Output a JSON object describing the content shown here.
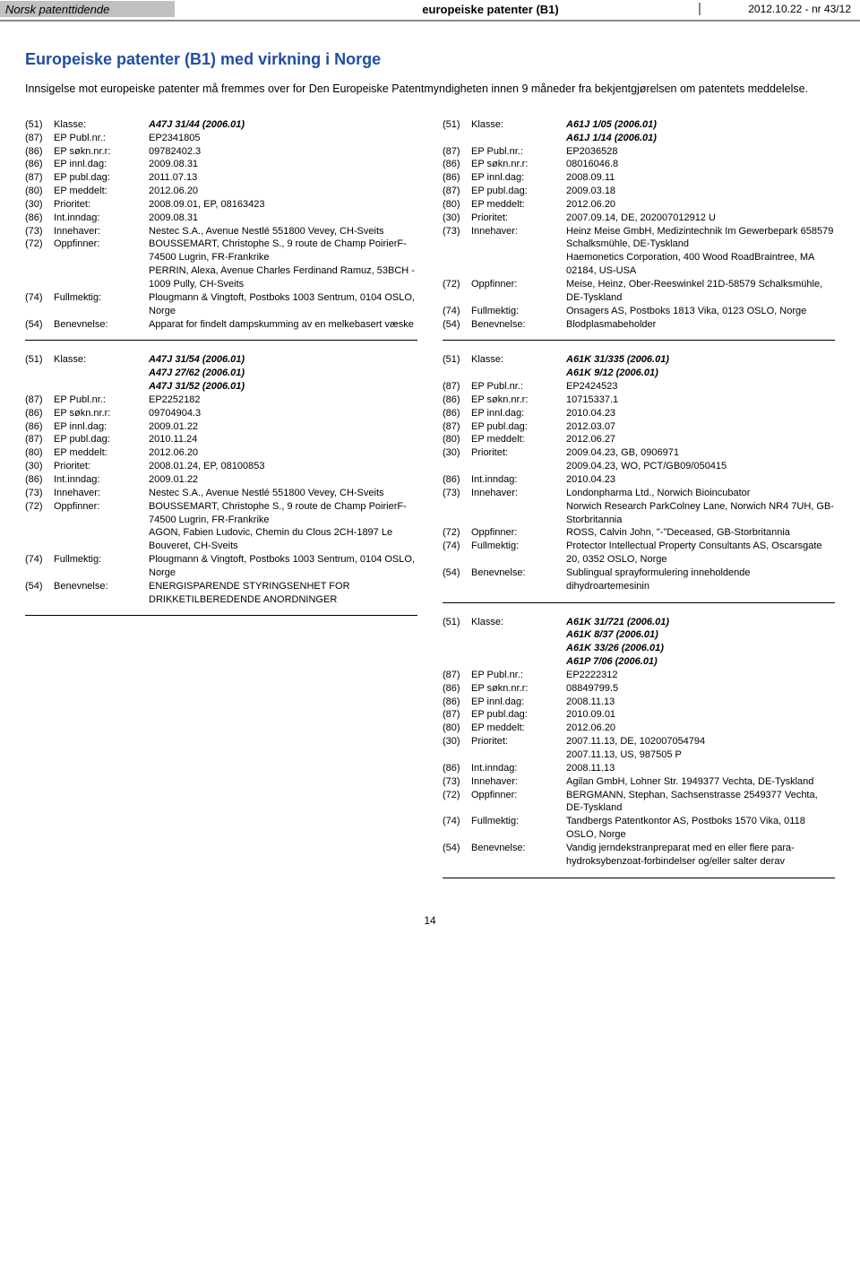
{
  "header": {
    "left": "Norsk patenttidende",
    "center": "europeiske patenter (B1)",
    "right": "2012.10.22 - nr 43/12"
  },
  "title": "Europeiske patenter (B1) med virkning i Norge",
  "intro": "Innsigelse mot europeiske patenter må fremmes over for Den Europeiske Patentmyndigheten innen 9 måneder fra bekjentgjørelsen om patentets meddelelse.",
  "pagenum": "14",
  "left_entries": [
    {
      "rows": [
        {
          "c": "(51)",
          "l": "Klasse:",
          "v": "A47J 31/44  (2006.01)",
          "b": true
        },
        {
          "c": "(87)",
          "l": "EP Publ.nr.:",
          "v": "EP2341805"
        },
        {
          "c": "(86)",
          "l": "EP søkn.nr.r:",
          "v": "09782402.3"
        },
        {
          "c": "(86)",
          "l": "EP innl.dag:",
          "v": "2009.08.31"
        },
        {
          "c": "(87)",
          "l": "EP publ.dag:",
          "v": "2011.07.13"
        },
        {
          "c": "(80)",
          "l": "EP meddelt:",
          "v": "2012.06.20"
        },
        {
          "c": "(30)",
          "l": "Prioritet:",
          "v": "2008.09.01, EP, 08163423"
        },
        {
          "c": "(86)",
          "l": "Int.inndag:",
          "v": "2009.08.31"
        },
        {
          "c": "(73)",
          "l": "Innehaver:",
          "v": "Nestec S.A., Avenue Nestlé 551800 Vevey, CH-Sveits"
        },
        {
          "c": "(72)",
          "l": "Oppfinner:",
          "v": "BOUSSEMART, Christophe S., 9 route de Champ PoirierF-74500 Lugrin, FR-Frankrike\nPERRIN, Alexa, Avenue Charles Ferdinand Ramuz, 53BCH - 1009 Pully, CH-Sveits"
        },
        {
          "c": "(74)",
          "l": "Fullmektig:",
          "v": "Plougmann & Vingtoft, Postboks 1003 Sentrum, 0104 OSLO, Norge"
        },
        {
          "c": "(54)",
          "l": "Benevnelse:",
          "v": "Apparat for findelt dampskumming av en melkebasert væske"
        }
      ]
    },
    {
      "rows": [
        {
          "c": "(51)",
          "l": "Klasse:",
          "v": "A47J 31/54  (2006.01)",
          "b": true
        },
        {
          "c": "",
          "l": "",
          "v": "A47J 27/62  (2006.01)",
          "b": true
        },
        {
          "c": "",
          "l": "",
          "v": "A47J 31/52  (2006.01)",
          "b": true
        },
        {
          "c": "(87)",
          "l": "EP Publ.nr.:",
          "v": "EP2252182"
        },
        {
          "c": "(86)",
          "l": "EP søkn.nr.r:",
          "v": "09704904.3"
        },
        {
          "c": "(86)",
          "l": "EP innl.dag:",
          "v": "2009.01.22"
        },
        {
          "c": "(87)",
          "l": "EP publ.dag:",
          "v": "2010.11.24"
        },
        {
          "c": "(80)",
          "l": "EP meddelt:",
          "v": "2012.06.20"
        },
        {
          "c": "(30)",
          "l": "Prioritet:",
          "v": "2008.01.24, EP, 08100853"
        },
        {
          "c": "(86)",
          "l": "Int.inndag:",
          "v": "2009.01.22"
        },
        {
          "c": "(73)",
          "l": "Innehaver:",
          "v": "Nestec S.A., Avenue Nestlé 551800 Vevey, CH-Sveits"
        },
        {
          "c": "(72)",
          "l": "Oppfinner:",
          "v": "BOUSSEMART, Christophe S., 9 route de Champ PoirierF-74500 Lugrin, FR-Frankrike\nAGON, Fabien Ludovic, Chemin du Clous 2CH-1897 Le Bouveret, CH-Sveits"
        },
        {
          "c": "(74)",
          "l": "Fullmektig:",
          "v": "Plougmann & Vingtoft, Postboks 1003 Sentrum, 0104 OSLO, Norge"
        },
        {
          "c": "(54)",
          "l": "Benevnelse:",
          "v": "ENERGISPARENDE STYRINGSENHET FOR DRIKKETILBEREDENDE ANORDNINGER"
        }
      ]
    }
  ],
  "right_entries": [
    {
      "rows": [
        {
          "c": "(51)",
          "l": "Klasse:",
          "v": "A61J  1/05  (2006.01)",
          "b": true
        },
        {
          "c": "",
          "l": "",
          "v": "A61J  1/14  (2006.01)",
          "b": true
        },
        {
          "c": "(87)",
          "l": "EP Publ.nr.:",
          "v": "EP2036528"
        },
        {
          "c": "(86)",
          "l": "EP søkn.nr.r:",
          "v": "08016046.8"
        },
        {
          "c": "(86)",
          "l": "EP innl.dag:",
          "v": "2008.09.11"
        },
        {
          "c": "(87)",
          "l": "EP publ.dag:",
          "v": "2009.03.18"
        },
        {
          "c": "(80)",
          "l": "EP meddelt:",
          "v": "2012.06.20"
        },
        {
          "c": "(30)",
          "l": "Prioritet:",
          "v": "2007.09.14, DE, 202007012912 U"
        },
        {
          "c": "(73)",
          "l": "Innehaver:",
          "v": "Heinz Meise GmbH, Medizintechnik Im Gewerbepark 658579 Schalksmühle, DE-Tyskland\nHaemonetics Corporation, 400 Wood RoadBraintree, MA 02184, US-USA"
        },
        {
          "c": "(72)",
          "l": "Oppfinner:",
          "v": "Meise, Heinz, Ober-Reeswinkel 21D-58579 Schalksmühle, DE-Tyskland"
        },
        {
          "c": "(74)",
          "l": "Fullmektig:",
          "v": "Onsagers AS, Postboks 1813 Vika, 0123 OSLO, Norge"
        },
        {
          "c": "(54)",
          "l": "Benevnelse:",
          "v": "Blodplasmabeholder"
        }
      ]
    },
    {
      "rows": [
        {
          "c": "(51)",
          "l": "Klasse:",
          "v": "A61K 31/335  (2006.01)",
          "b": true
        },
        {
          "c": "",
          "l": "",
          "v": "A61K  9/12  (2006.01)",
          "b": true
        },
        {
          "c": "(87)",
          "l": "EP Publ.nr.:",
          "v": "EP2424523"
        },
        {
          "c": "(86)",
          "l": "EP søkn.nr.r:",
          "v": "10715337.1"
        },
        {
          "c": "(86)",
          "l": "EP innl.dag:",
          "v": "2010.04.23"
        },
        {
          "c": "(87)",
          "l": "EP publ.dag:",
          "v": "2012.03.07"
        },
        {
          "c": "(80)",
          "l": "EP meddelt:",
          "v": "2012.06.27"
        },
        {
          "c": "(30)",
          "l": "Prioritet:",
          "v": "2009.04.23, GB, 0906971\n2009.04.23, WO, PCT/GB09/050415"
        },
        {
          "c": "(86)",
          "l": "Int.inndag:",
          "v": "2010.04.23"
        },
        {
          "c": "(73)",
          "l": "Innehaver:",
          "v": "Londonpharma Ltd., Norwich Bioincubator\nNorwich Research ParkColney Lane, Norwich NR4 7UH, GB-Storbritannia"
        },
        {
          "c": "(72)",
          "l": "Oppfinner:",
          "v": "ROSS, Calvin John, \"-\"Deceased, GB-Storbritannia"
        },
        {
          "c": "(74)",
          "l": "Fullmektig:",
          "v": "Protector Intellectual Property Consultants AS, Oscarsgate 20, 0352 OSLO, Norge"
        },
        {
          "c": "(54)",
          "l": "Benevnelse:",
          "v": "Sublingual sprayformulering inneholdende dihydroartemesinin"
        }
      ]
    },
    {
      "rows": [
        {
          "c": "(51)",
          "l": "Klasse:",
          "v": "A61K 31/721  (2006.01)",
          "b": true
        },
        {
          "c": "",
          "l": "",
          "v": "A61K  8/37  (2006.01)",
          "b": true
        },
        {
          "c": "",
          "l": "",
          "v": "A61K 33/26  (2006.01)",
          "b": true
        },
        {
          "c": "",
          "l": "",
          "v": "A61P  7/06  (2006.01)",
          "b": true
        },
        {
          "c": "(87)",
          "l": "EP Publ.nr.:",
          "v": "EP2222312"
        },
        {
          "c": "(86)",
          "l": "EP søkn.nr.r:",
          "v": "08849799.5"
        },
        {
          "c": "(86)",
          "l": "EP innl.dag:",
          "v": "2008.11.13"
        },
        {
          "c": "(87)",
          "l": "EP publ.dag:",
          "v": "2010.09.01"
        },
        {
          "c": "(80)",
          "l": "EP meddelt:",
          "v": "2012.06.20"
        },
        {
          "c": "(30)",
          "l": "Prioritet:",
          "v": "2007.11.13, DE, 102007054794\n2007.11.13, US, 987505 P"
        },
        {
          "c": "(86)",
          "l": "Int.inndag:",
          "v": "2008.11.13"
        },
        {
          "c": "(73)",
          "l": "Innehaver:",
          "v": "Agilan GmbH, Lohner Str. 1949377 Vechta, DE-Tyskland"
        },
        {
          "c": "(72)",
          "l": "Oppfinner:",
          "v": "BERGMANN, Stephan, Sachsenstrasse 2549377 Vechta, DE-Tyskland"
        },
        {
          "c": "(74)",
          "l": "Fullmektig:",
          "v": "Tandbergs Patentkontor AS, Postboks 1570 Vika, 0118 OSLO, Norge"
        },
        {
          "c": "(54)",
          "l": "Benevnelse:",
          "v": "Vandig jerndekstranpreparat med en eller flere para-hydroksybenzoat-forbindelser og/eller salter derav"
        }
      ]
    }
  ]
}
